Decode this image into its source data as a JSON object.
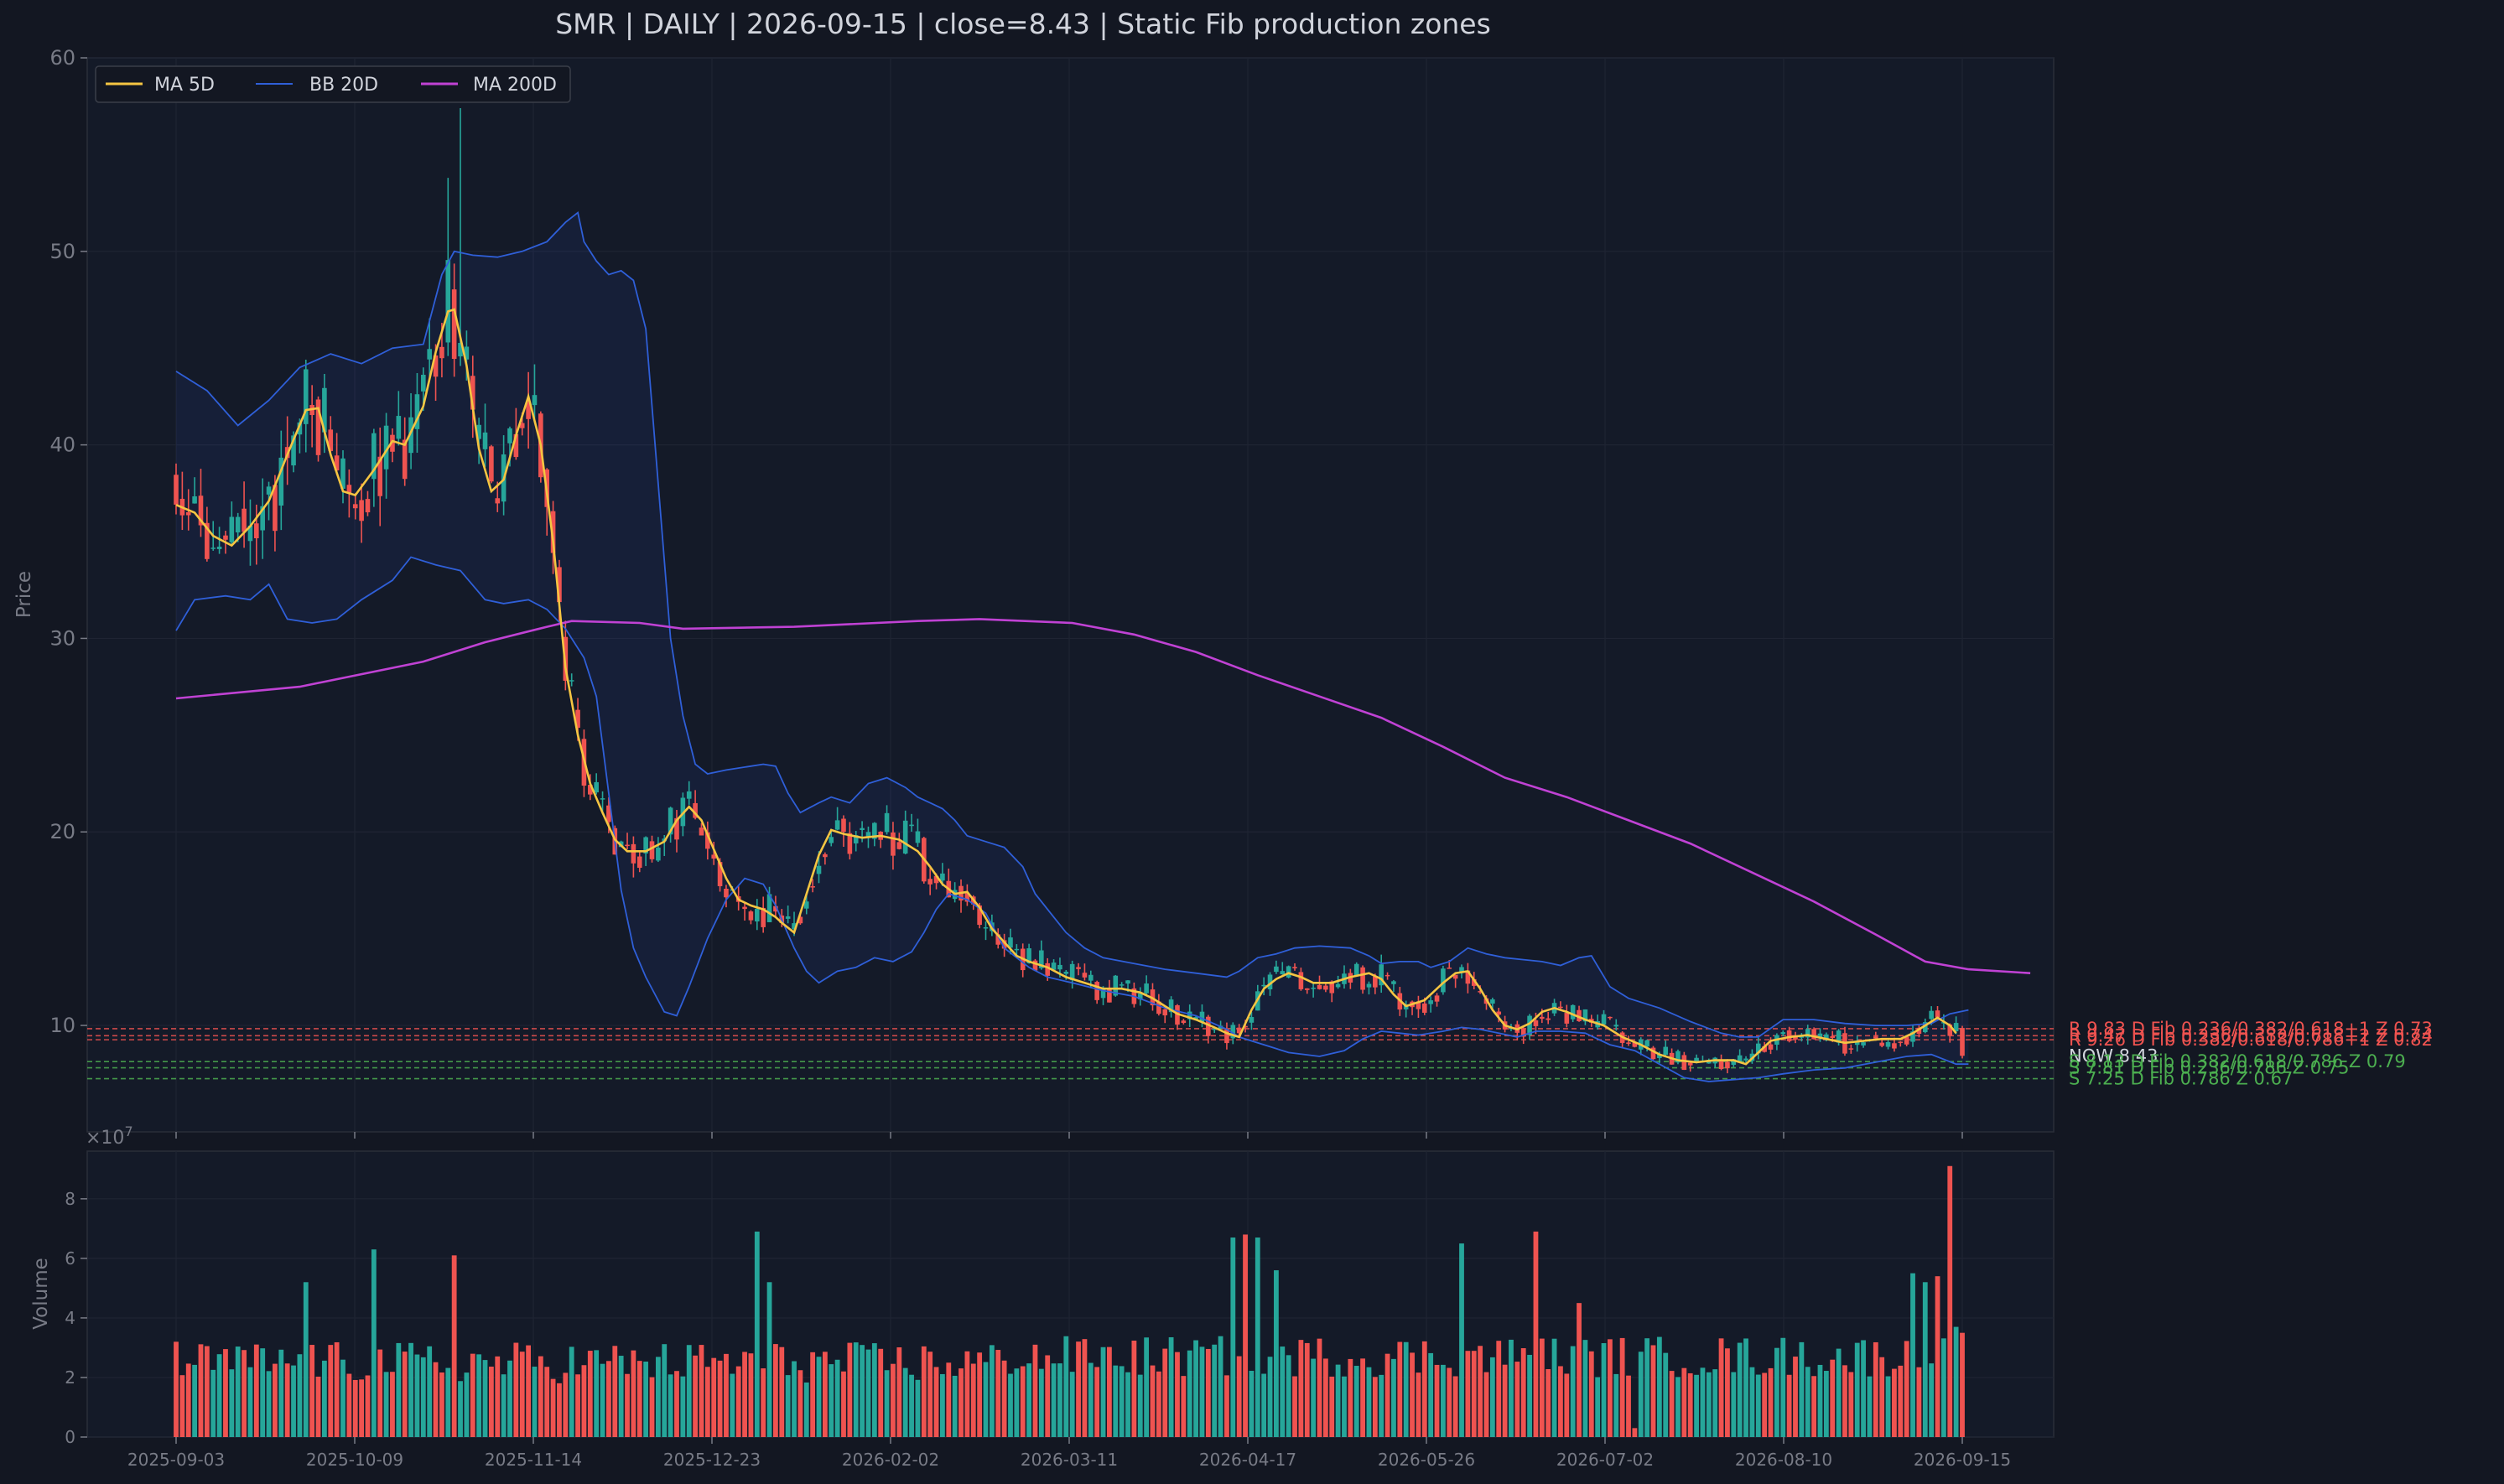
{
  "chart_data": {
    "type": "candlestick",
    "title": "SMR  |  DAILY  |  2026-09-15  |  close=8.43  |  Static Fib production zones",
    "ylabel": "Price",
    "ylim": [
      4.5,
      60
    ],
    "y_ticks": [
      "10",
      "20",
      "30",
      "40",
      "50",
      "60"
    ],
    "x_tick_labels": [
      "2025-09-03",
      "2025-10-09",
      "2025-11-14",
      "2025-12-23",
      "2026-02-02",
      "2026-03-11",
      "2026-04-17",
      "2026-05-26",
      "2026-07-02",
      "2026-08-10",
      "2026-09-15"
    ],
    "legend": [
      "MA 5D",
      "BB 20D",
      "MA 200D"
    ],
    "legend_position": "top-left",
    "grid": true,
    "ma5_path": [
      [
        0,
        36.9
      ],
      [
        3,
        36.5
      ],
      [
        6,
        35.3
      ],
      [
        9,
        34.8
      ],
      [
        12,
        35.8
      ],
      [
        15,
        37.1
      ],
      [
        18,
        39.5
      ],
      [
        21,
        41.8
      ],
      [
        23,
        41.9
      ],
      [
        25,
        39.5
      ],
      [
        27,
        37.6
      ],
      [
        29,
        37.4
      ],
      [
        32,
        38.7
      ],
      [
        35,
        40.2
      ],
      [
        37,
        40.0
      ],
      [
        40,
        42.0
      ],
      [
        42,
        44.8
      ],
      [
        44,
        46.9
      ],
      [
        45,
        47.0
      ],
      [
        47,
        44.1
      ],
      [
        49,
        39.8
      ],
      [
        51,
        37.6
      ],
      [
        53,
        38.2
      ],
      [
        55,
        40.5
      ],
      [
        57,
        42.5
      ],
      [
        59,
        40.0
      ],
      [
        61,
        35.0
      ],
      [
        63,
        28.5
      ],
      [
        65,
        25.0
      ],
      [
        67,
        22.5
      ],
      [
        69,
        21.0
      ],
      [
        71,
        19.6
      ],
      [
        73,
        19.0
      ],
      [
        76,
        19.0
      ],
      [
        79,
        19.5
      ],
      [
        81,
        20.6
      ],
      [
        83,
        21.3
      ],
      [
        85,
        20.6
      ],
      [
        87,
        19.1
      ],
      [
        89,
        17.6
      ],
      [
        91,
        16.5
      ],
      [
        93,
        16.2
      ],
      [
        95,
        16.0
      ],
      [
        97,
        15.6
      ],
      [
        98,
        15.3
      ],
      [
        100,
        14.8
      ],
      [
        102,
        16.8
      ],
      [
        104,
        18.8
      ],
      [
        106,
        20.1
      ],
      [
        108,
        19.9
      ],
      [
        111,
        19.7
      ],
      [
        114,
        19.8
      ],
      [
        117,
        19.6
      ],
      [
        120,
        19.0
      ],
      [
        122,
        18.2
      ],
      [
        124,
        17.3
      ],
      [
        126,
        16.8
      ],
      [
        128,
        16.9
      ],
      [
        130,
        16.1
      ],
      [
        132,
        15.0
      ],
      [
        134,
        14.3
      ],
      [
        136,
        13.6
      ],
      [
        138,
        13.3
      ],
      [
        141,
        13.0
      ],
      [
        144,
        12.5
      ],
      [
        147,
        12.2
      ],
      [
        150,
        11.9
      ],
      [
        153,
        11.9
      ],
      [
        156,
        11.7
      ],
      [
        158,
        11.4
      ],
      [
        160,
        11.0
      ],
      [
        162,
        10.6
      ],
      [
        165,
        10.3
      ],
      [
        168,
        9.9
      ],
      [
        170,
        9.6
      ],
      [
        172,
        9.4
      ],
      [
        174,
        10.8
      ],
      [
        176,
        11.9
      ],
      [
        178,
        12.4
      ],
      [
        180,
        12.7
      ],
      [
        182,
        12.5
      ],
      [
        184,
        12.2
      ],
      [
        187,
        12.2
      ],
      [
        190,
        12.5
      ],
      [
        193,
        12.7
      ],
      [
        195,
        12.4
      ],
      [
        197,
        11.6
      ],
      [
        199,
        11.0
      ],
      [
        202,
        11.3
      ],
      [
        205,
        12.2
      ],
      [
        207,
        12.7
      ],
      [
        209,
        12.8
      ],
      [
        211,
        11.9
      ],
      [
        213,
        10.8
      ],
      [
        215,
        10.0
      ],
      [
        217,
        9.8
      ],
      [
        219,
        10.1
      ],
      [
        221,
        10.7
      ],
      [
        223,
        10.9
      ],
      [
        225,
        10.7
      ],
      [
        228,
        10.3
      ],
      [
        231,
        10.0
      ],
      [
        234,
        9.4
      ],
      [
        237,
        9.0
      ],
      [
        240,
        8.5
      ],
      [
        243,
        8.2
      ],
      [
        246,
        8.1
      ],
      [
        249,
        8.2
      ],
      [
        252,
        8.2
      ],
      [
        254,
        8.0
      ],
      [
        256,
        8.6
      ],
      [
        258,
        9.2
      ],
      [
        261,
        9.4
      ],
      [
        264,
        9.5
      ],
      [
        267,
        9.3
      ],
      [
        270,
        9.1
      ],
      [
        273,
        9.2
      ],
      [
        276,
        9.3
      ],
      [
        279,
        9.3
      ],
      [
        281,
        9.6
      ],
      [
        283,
        10.0
      ],
      [
        285,
        10.4
      ],
      [
        287,
        10.0
      ],
      [
        288,
        9.6
      ]
    ],
    "ma200_path": [
      [
        0,
        26.9
      ],
      [
        20,
        27.5
      ],
      [
        40,
        28.8
      ],
      [
        50,
        29.8
      ],
      [
        60,
        30.6
      ],
      [
        64,
        30.9
      ],
      [
        75,
        30.8
      ],
      [
        82,
        30.5
      ],
      [
        100,
        30.6
      ],
      [
        120,
        30.9
      ],
      [
        130,
        31.0
      ],
      [
        145,
        30.8
      ],
      [
        155,
        30.2
      ],
      [
        165,
        29.3
      ],
      [
        175,
        28.1
      ],
      [
        185,
        27.0
      ],
      [
        195,
        25.9
      ],
      [
        205,
        24.4
      ],
      [
        215,
        22.8
      ],
      [
        225,
        21.8
      ],
      [
        235,
        20.6
      ],
      [
        245,
        19.4
      ],
      [
        255,
        17.9
      ],
      [
        265,
        16.4
      ],
      [
        275,
        14.7
      ],
      [
        283,
        13.3
      ],
      [
        290,
        12.9
      ],
      [
        300,
        12.7
      ]
    ],
    "bb_upper_path": [
      [
        0,
        43.8
      ],
      [
        5,
        42.8
      ],
      [
        10,
        41.0
      ],
      [
        15,
        42.3
      ],
      [
        20,
        44.0
      ],
      [
        25,
        44.7
      ],
      [
        30,
        44.2
      ],
      [
        35,
        45.0
      ],
      [
        40,
        45.2
      ],
      [
        43,
        48.8
      ],
      [
        45,
        50.0
      ],
      [
        48,
        49.8
      ],
      [
        52,
        49.7
      ],
      [
        56,
        50.0
      ],
      [
        60,
        50.5
      ],
      [
        63,
        51.5
      ],
      [
        65,
        52.0
      ],
      [
        66,
        50.5
      ],
      [
        68,
        49.5
      ],
      [
        70,
        48.8
      ],
      [
        72,
        49.0
      ],
      [
        74,
        48.5
      ],
      [
        76,
        46.0
      ],
      [
        78,
        38.0
      ],
      [
        80,
        30.0
      ],
      [
        82,
        26.0
      ],
      [
        84,
        23.5
      ],
      [
        86,
        23.0
      ],
      [
        89,
        23.2
      ],
      [
        93,
        23.4
      ],
      [
        95,
        23.5
      ],
      [
        97,
        23.4
      ],
      [
        99,
        22.0
      ],
      [
        101,
        21.0
      ],
      [
        104,
        21.5
      ],
      [
        106,
        21.8
      ],
      [
        109,
        21.5
      ],
      [
        112,
        22.5
      ],
      [
        115,
        22.8
      ],
      [
        118,
        22.3
      ],
      [
        120,
        21.8
      ],
      [
        122,
        21.5
      ],
      [
        124,
        21.2
      ],
      [
        126,
        20.6
      ],
      [
        128,
        19.8
      ],
      [
        131,
        19.5
      ],
      [
        134,
        19.2
      ],
      [
        137,
        18.2
      ],
      [
        139,
        16.8
      ],
      [
        141,
        16.0
      ],
      [
        144,
        14.8
      ],
      [
        147,
        14.0
      ],
      [
        150,
        13.5
      ],
      [
        155,
        13.2
      ],
      [
        160,
        12.9
      ],
      [
        165,
        12.7
      ],
      [
        170,
        12.5
      ],
      [
        172,
        12.8
      ],
      [
        175,
        13.5
      ],
      [
        178,
        13.7
      ],
      [
        181,
        14.0
      ],
      [
        185,
        14.1
      ],
      [
        190,
        14.0
      ],
      [
        193,
        13.6
      ],
      [
        195,
        13.2
      ],
      [
        198,
        13.3
      ],
      [
        201,
        13.3
      ],
      [
        203,
        13.0
      ],
      [
        206,
        13.3
      ],
      [
        209,
        14.0
      ],
      [
        212,
        13.7
      ],
      [
        215,
        13.5
      ],
      [
        218,
        13.4
      ],
      [
        221,
        13.3
      ],
      [
        224,
        13.1
      ],
      [
        227,
        13.5
      ],
      [
        229,
        13.6
      ],
      [
        232,
        12.0
      ],
      [
        235,
        11.4
      ],
      [
        240,
        10.9
      ],
      [
        245,
        10.2
      ],
      [
        250,
        9.6
      ],
      [
        253,
        9.4
      ],
      [
        256,
        9.4
      ],
      [
        260,
        10.3
      ],
      [
        265,
        10.3
      ],
      [
        270,
        10.1
      ],
      [
        275,
        10.0
      ],
      [
        280,
        10.0
      ],
      [
        284,
        10.1
      ],
      [
        287,
        10.6
      ],
      [
        290,
        10.8
      ]
    ],
    "bb_lower_path": [
      [
        0,
        30.4
      ],
      [
        3,
        32.0
      ],
      [
        8,
        32.2
      ],
      [
        12,
        32.0
      ],
      [
        15,
        32.8
      ],
      [
        18,
        31.0
      ],
      [
        22,
        30.8
      ],
      [
        26,
        31.0
      ],
      [
        30,
        32.0
      ],
      [
        35,
        33.0
      ],
      [
        38,
        34.2
      ],
      [
        42,
        33.8
      ],
      [
        46,
        33.5
      ],
      [
        50,
        32.0
      ],
      [
        53,
        31.8
      ],
      [
        57,
        32.0
      ],
      [
        60,
        31.5
      ],
      [
        63,
        30.5
      ],
      [
        66,
        29.0
      ],
      [
        68,
        27.0
      ],
      [
        70,
        22.0
      ],
      [
        72,
        17.0
      ],
      [
        74,
        14.0
      ],
      [
        76,
        12.5
      ],
      [
        79,
        10.7
      ],
      [
        81,
        10.5
      ],
      [
        83,
        12.0
      ],
      [
        86,
        14.5
      ],
      [
        89,
        16.5
      ],
      [
        92,
        17.6
      ],
      [
        95,
        17.3
      ],
      [
        97,
        16.2
      ],
      [
        100,
        14.0
      ],
      [
        102,
        12.8
      ],
      [
        104,
        12.2
      ],
      [
        107,
        12.8
      ],
      [
        110,
        13.0
      ],
      [
        113,
        13.5
      ],
      [
        116,
        13.3
      ],
      [
        119,
        13.8
      ],
      [
        121,
        14.8
      ],
      [
        123,
        16.0
      ],
      [
        125,
        16.8
      ],
      [
        128,
        16.5
      ],
      [
        131,
        15.8
      ],
      [
        134,
        14.0
      ],
      [
        138,
        13.0
      ],
      [
        141,
        12.5
      ],
      [
        145,
        12.2
      ],
      [
        150,
        11.8
      ],
      [
        155,
        11.5
      ],
      [
        160,
        10.9
      ],
      [
        165,
        10.5
      ],
      [
        170,
        9.8
      ],
      [
        172,
        9.4
      ],
      [
        174,
        9.2
      ],
      [
        177,
        8.9
      ],
      [
        180,
        8.6
      ],
      [
        185,
        8.4
      ],
      [
        189,
        8.7
      ],
      [
        192,
        9.3
      ],
      [
        195,
        9.7
      ],
      [
        198,
        9.6
      ],
      [
        201,
        9.5
      ],
      [
        205,
        9.7
      ],
      [
        208,
        9.9
      ],
      [
        211,
        9.8
      ],
      [
        214,
        9.6
      ],
      [
        217,
        9.4
      ],
      [
        220,
        9.7
      ],
      [
        224,
        9.7
      ],
      [
        228,
        9.6
      ],
      [
        232,
        9.0
      ],
      [
        236,
        8.7
      ],
      [
        240,
        8.0
      ],
      [
        244,
        7.3
      ],
      [
        248,
        7.1
      ],
      [
        252,
        7.2
      ],
      [
        256,
        7.3
      ],
      [
        260,
        7.5
      ],
      [
        265,
        7.7
      ],
      [
        270,
        7.8
      ],
      [
        275,
        8.1
      ],
      [
        280,
        8.4
      ],
      [
        284,
        8.5
      ],
      [
        288,
        8.0
      ],
      [
        290,
        8.0
      ]
    ],
    "candles_source": "seeded-random-walk",
    "candle_count": 290,
    "volume_panel": {
      "ylabel": "Volume",
      "multiplier": "×10",
      "multiplier_exp": "7",
      "ylim": [
        0,
        9.6
      ],
      "y_ticks": [
        "0",
        "2",
        "4",
        "6",
        "8"
      ]
    },
    "fib_levels": [
      {
        "price": 9.83,
        "label": "R 9.83  D  Fib 0.236/0.382/0.618+1  Z 0.73",
        "color": "#ef5350"
      },
      {
        "price": 9.47,
        "label": "R 9.47  D  Fib 0.236/0.382/0.618+2  Z 0.74",
        "color": "#ef5350"
      },
      {
        "price": 9.26,
        "label": "R 9.26  D  Fib 0.382/0.618/0.786+1  Z 0.82",
        "color": "#ef5350"
      },
      {
        "price": 8.43,
        "label": "NOW 8.43",
        "color": "#d1d4dc"
      },
      {
        "price": 8.13,
        "label": "S 8.13  D  Fib 0.382/0.618/0.786  Z 0.79",
        "color": "#4caf50"
      },
      {
        "price": 7.81,
        "label": "S 7.81  D  Fib 0.236/0.786  Z 0.75",
        "color": "#4caf50"
      },
      {
        "price": 7.25,
        "label": "S 7.25  D  Fib 0.786  Z 0.67",
        "color": "#4caf50"
      }
    ],
    "colors": {
      "up": "#26a69a",
      "down": "#ef5350",
      "ma5": "#f5c542",
      "bb": "#2f5fd8",
      "ma200": "#c042d4",
      "text": "#d1d4dc",
      "axis": "#787b86"
    }
  }
}
